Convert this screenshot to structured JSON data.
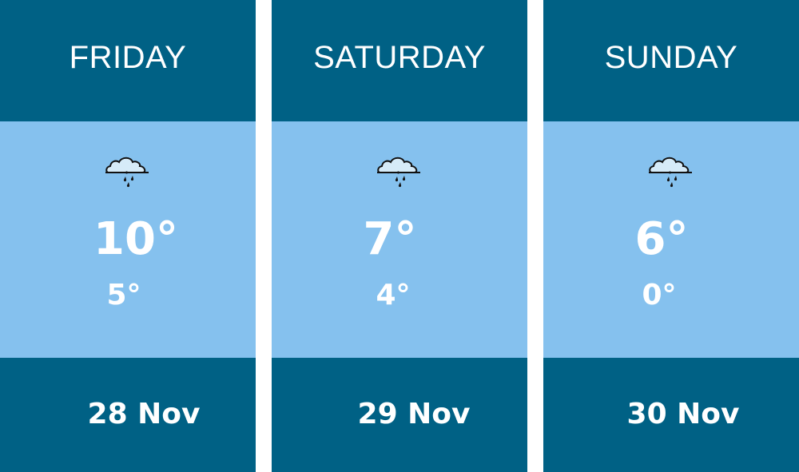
{
  "colors": {
    "header": "#006185",
    "body": "#85c1ee",
    "text": "#ffffff"
  },
  "days": [
    {
      "name": "FRIDAY",
      "icon": "rain-cloud-icon",
      "high": "10°",
      "low": "5°",
      "date": "28 Nov"
    },
    {
      "name": "SATURDAY",
      "icon": "rain-cloud-icon",
      "high": "7°",
      "low": "4°",
      "date": "29 Nov"
    },
    {
      "name": "SUNDAY",
      "icon": "rain-cloud-icon",
      "high": "6°",
      "low": "0°",
      "date": "30 Nov"
    }
  ]
}
